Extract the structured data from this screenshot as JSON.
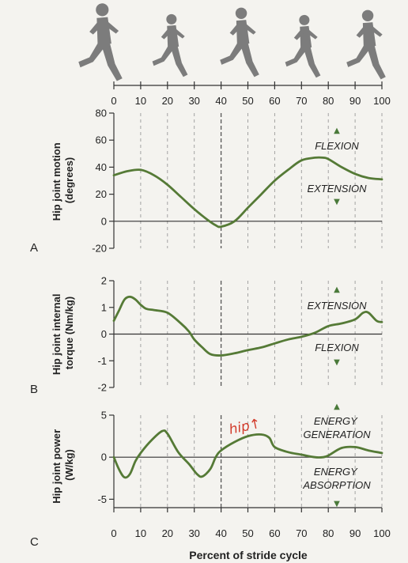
{
  "top_axis": {
    "ticks": [
      "0",
      "10",
      "20",
      "30",
      "40",
      "50",
      "60",
      "70",
      "80",
      "90",
      "100"
    ]
  },
  "xlabel": "Percent of stride cycle",
  "handwritten_note": "hip↑",
  "colors": {
    "curve": "#557a36",
    "zero_line": "#333333",
    "grid": "#9a9a9a",
    "arrow": "#4a7a3a"
  },
  "figures": {
    "icon": "runner-icon",
    "count": 5
  },
  "chart_data": [
    {
      "type": "line",
      "panel": "A",
      "ylabel_lines": [
        "Hip joint motion",
        "(degrees)"
      ],
      "xlim": [
        0,
        100
      ],
      "ylim": [
        -20,
        80
      ],
      "yticks": [
        "80",
        "60",
        "40",
        "20",
        "0",
        "-20"
      ],
      "xticks": [],
      "grid": "vertical dashed at every 10%",
      "annotations": {
        "upper": "FLEXION",
        "lower": "EXTENSION"
      },
      "x": [
        0,
        5,
        10,
        15,
        20,
        25,
        30,
        35,
        38,
        40,
        45,
        50,
        55,
        60,
        65,
        70,
        75,
        78,
        80,
        85,
        90,
        95,
        100
      ],
      "values": [
        34,
        37,
        38,
        34,
        27,
        18,
        9,
        1,
        -3,
        -4,
        0,
        10,
        20,
        30,
        38,
        45,
        47,
        47,
        46,
        40,
        35,
        32,
        31
      ]
    },
    {
      "type": "line",
      "panel": "B",
      "ylabel_lines": [
        "Hip joint internal",
        "torque (Nm/kg)"
      ],
      "xlim": [
        0,
        100
      ],
      "ylim": [
        -2,
        2
      ],
      "yticks": [
        "2",
        "1",
        "0",
        "-1",
        "-2"
      ],
      "xticks": [],
      "grid": "vertical dashed at every 10%",
      "annotations": {
        "upper": "EXTENSION",
        "lower": "FLEXION"
      },
      "x": [
        0,
        2,
        4,
        6,
        8,
        10,
        12,
        15,
        20,
        25,
        28,
        30,
        33,
        36,
        40,
        45,
        50,
        55,
        60,
        65,
        70,
        75,
        80,
        85,
        90,
        93,
        95,
        98,
        100
      ],
      "values": [
        0.5,
        0.9,
        1.3,
        1.4,
        1.3,
        1.1,
        0.95,
        0.9,
        0.8,
        0.4,
        0.1,
        -0.2,
        -0.5,
        -0.75,
        -0.8,
        -0.72,
        -0.6,
        -0.5,
        -0.35,
        -0.2,
        -0.1,
        0.05,
        0.3,
        0.4,
        0.55,
        0.8,
        0.8,
        0.5,
        0.45
      ]
    },
    {
      "type": "line",
      "panel": "C",
      "ylabel_lines": [
        "Hip joint power",
        "(W/kg)"
      ],
      "xlim": [
        0,
        100
      ],
      "ylim": [
        -6,
        5
      ],
      "yticks": [
        "5",
        "0",
        "-5"
      ],
      "xticks": [
        "0",
        "10",
        "20",
        "30",
        "40",
        "50",
        "60",
        "70",
        "80",
        "90",
        "100"
      ],
      "grid": "vertical dashed at every 10%",
      "annotations": {
        "upper_lines": [
          "ENERGY",
          "GENERATION"
        ],
        "lower_lines": [
          "ENERGY",
          "ABSORPTION"
        ]
      },
      "x": [
        0,
        2,
        4,
        6,
        8,
        10,
        14,
        18,
        20,
        24,
        28,
        31,
        33,
        36,
        38,
        40,
        45,
        50,
        55,
        58,
        60,
        65,
        70,
        75,
        78,
        80,
        85,
        90,
        95,
        100
      ],
      "values": [
        0,
        -1.5,
        -2.4,
        -2.0,
        -0.5,
        0.5,
        2.0,
        3.1,
        2.8,
        0.6,
        -0.8,
        -2.0,
        -2.3,
        -1.4,
        0,
        0.8,
        1.8,
        2.5,
        2.7,
        2.3,
        1.2,
        0.6,
        0.3,
        0,
        0,
        0.2,
        1.1,
        1.2,
        0.8,
        0.5
      ]
    }
  ]
}
